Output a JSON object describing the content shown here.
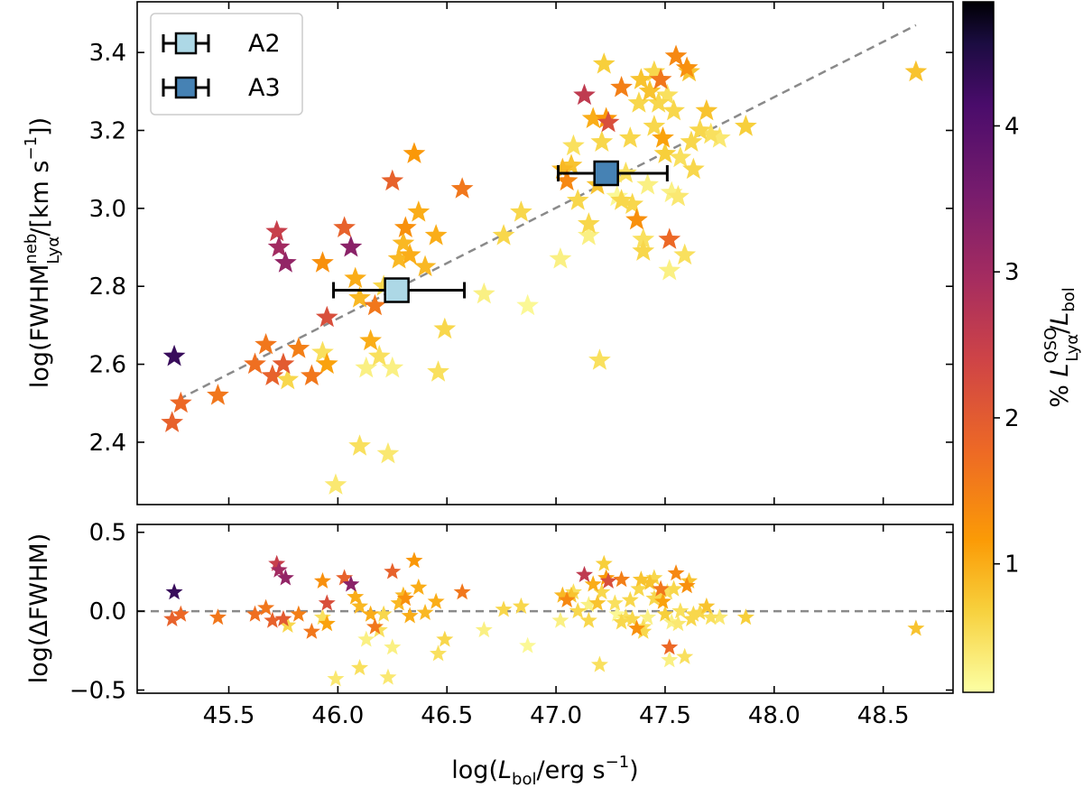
{
  "chart_data": [
    {
      "type": "scatter",
      "panel": "main",
      "xlabel": "log(L_bol / erg s^-1)",
      "ylabel": "log(FWHM_Lyα^neb / [km s^-1])",
      "ylabel_parts": {
        "pre": "log",
        "open": "(",
        "main": "FWHM",
        "sup": "neb",
        "sub": "Lyα",
        "unit": "/[km s",
        "unit_sup": "−1",
        "close": "])"
      },
      "xlim": [
        45.08,
        48.82
      ],
      "ylim": [
        2.24,
        3.53
      ],
      "xticks": [
        45.5,
        46.0,
        46.5,
        47.0,
        47.5,
        48.0,
        48.5
      ],
      "xtick_labels": [
        "45.5",
        "46.0",
        "46.5",
        "47.0",
        "47.5",
        "48.0",
        "48.5"
      ],
      "yticks": [
        2.4,
        2.6,
        2.8,
        3.0,
        3.2,
        3.4
      ],
      "ytick_labels": [
        "2.4",
        "2.6",
        "2.8",
        "3.0",
        "3.2",
        "3.4"
      ],
      "fit_line": {
        "x": [
          45.27,
          48.65
        ],
        "y": [
          2.51,
          3.47
        ],
        "style": "dashed",
        "color": "#8a8a8a"
      },
      "stars_color_var": "% L_Lyα^QSO / L_bol",
      "stars": [
        [
          45.25,
          2.62,
          4.3
        ],
        [
          45.24,
          2.45,
          1.9
        ],
        [
          45.28,
          2.5,
          1.8
        ],
        [
          45.45,
          2.52,
          1.6
        ],
        [
          45.62,
          2.6,
          1.7
        ],
        [
          45.67,
          2.65,
          1.6
        ],
        [
          45.7,
          2.57,
          1.9
        ],
        [
          45.72,
          2.94,
          2.5
        ],
        [
          45.73,
          2.9,
          3.0
        ],
        [
          45.76,
          2.86,
          3.2
        ],
        [
          45.75,
          2.6,
          2.0
        ],
        [
          45.77,
          2.56,
          0.6
        ],
        [
          45.82,
          2.64,
          1.5
        ],
        [
          45.88,
          2.57,
          1.6
        ],
        [
          45.93,
          2.86,
          1.3
        ],
        [
          45.93,
          2.63,
          0.5
        ],
        [
          45.95,
          2.6,
          1.1
        ],
        [
          45.95,
          2.72,
          2.2
        ],
        [
          46.03,
          2.95,
          1.9
        ],
        [
          46.06,
          2.9,
          3.3
        ],
        [
          46.08,
          2.82,
          1.0
        ],
        [
          46.1,
          2.77,
          0.9
        ],
        [
          46.1,
          2.39,
          0.5
        ],
        [
          46.13,
          2.59,
          0.3
        ],
        [
          46.15,
          2.66,
          1.0
        ],
        [
          46.17,
          2.75,
          1.6
        ],
        [
          46.19,
          2.62,
          0.5
        ],
        [
          46.21,
          2.8,
          0.6
        ],
        [
          46.23,
          2.37,
          0.4
        ],
        [
          46.25,
          2.59,
          0.3
        ],
        [
          46.25,
          3.07,
          1.9
        ],
        [
          46.28,
          2.87,
          0.9
        ],
        [
          46.3,
          2.91,
          0.9
        ],
        [
          46.31,
          2.95,
          1.3
        ],
        [
          46.33,
          2.88,
          1.0
        ],
        [
          46.35,
          3.14,
          1.2
        ],
        [
          46.37,
          2.99,
          1.0
        ],
        [
          46.4,
          2.85,
          0.9
        ],
        [
          46.45,
          2.93,
          1.0
        ],
        [
          46.46,
          2.58,
          0.5
        ],
        [
          46.49,
          2.69,
          0.6
        ],
        [
          46.57,
          3.05,
          1.6
        ],
        [
          46.67,
          2.78,
          0.3
        ],
        [
          46.76,
          2.93,
          0.6
        ],
        [
          46.84,
          2.99,
          0.6
        ],
        [
          46.87,
          2.75,
          0.2
        ],
        [
          45.99,
          2.29,
          0.4
        ],
        [
          47.02,
          2.87,
          0.3
        ],
        [
          47.03,
          3.1,
          0.9
        ],
        [
          47.05,
          3.07,
          1.4
        ],
        [
          47.07,
          3.11,
          0.8
        ],
        [
          47.08,
          3.16,
          0.5
        ],
        [
          47.1,
          3.02,
          0.6
        ],
        [
          47.13,
          3.29,
          2.6
        ],
        [
          47.15,
          2.96,
          0.6
        ],
        [
          47.15,
          2.93,
          0.3
        ],
        [
          47.17,
          3.23,
          1.0
        ],
        [
          47.19,
          3.06,
          0.8
        ],
        [
          47.2,
          2.61,
          0.5
        ],
        [
          47.21,
          3.17,
          0.6
        ],
        [
          47.22,
          3.37,
          0.7
        ],
        [
          47.23,
          3.23,
          1.2
        ],
        [
          47.24,
          3.22,
          2.2
        ],
        [
          47.27,
          3.09,
          0.5
        ],
        [
          47.28,
          3.03,
          0.2
        ],
        [
          47.3,
          3.02,
          0.6
        ],
        [
          47.3,
          3.31,
          1.5
        ],
        [
          47.32,
          3.09,
          0.5
        ],
        [
          47.34,
          3.18,
          0.6
        ],
        [
          47.35,
          3.01,
          0.6
        ],
        [
          47.37,
          2.97,
          1.3
        ],
        [
          47.38,
          3.27,
          0.6
        ],
        [
          47.39,
          3.33,
          0.8
        ],
        [
          47.4,
          2.92,
          0.5
        ],
        [
          47.4,
          2.89,
          0.6
        ],
        [
          47.42,
          3.06,
          0.3
        ],
        [
          47.43,
          3.3,
          0.8
        ],
        [
          47.45,
          3.35,
          0.6
        ],
        [
          47.45,
          3.21,
          0.6
        ],
        [
          47.47,
          3.27,
          0.6
        ],
        [
          47.48,
          3.33,
          1.6
        ],
        [
          47.49,
          3.18,
          1.1
        ],
        [
          47.5,
          3.14,
          0.7
        ],
        [
          47.51,
          3.29,
          0.5
        ],
        [
          47.52,
          2.92,
          1.8
        ],
        [
          47.52,
          2.84,
          0.3
        ],
        [
          47.53,
          3.04,
          0.3
        ],
        [
          47.54,
          3.25,
          0.6
        ],
        [
          47.55,
          3.39,
          1.4
        ],
        [
          47.56,
          3.03,
          0.4
        ],
        [
          47.57,
          3.13,
          0.5
        ],
        [
          47.59,
          2.88,
          0.5
        ],
        [
          47.6,
          3.36,
          1.3
        ],
        [
          47.61,
          3.35,
          0.8
        ],
        [
          47.62,
          3.17,
          0.6
        ],
        [
          47.63,
          3.1,
          0.6
        ],
        [
          47.66,
          3.2,
          0.6
        ],
        [
          47.69,
          3.25,
          0.8
        ],
        [
          47.71,
          3.19,
          0.5
        ],
        [
          47.75,
          3.18,
          0.4
        ],
        [
          47.87,
          3.21,
          0.7
        ],
        [
          48.65,
          3.35,
          0.8
        ]
      ],
      "binned_points": [
        {
          "name": "A2",
          "x": 46.27,
          "y": 2.79,
          "xerr": [
            45.98,
            46.58
          ],
          "color": "#add8e6"
        },
        {
          "name": "A3",
          "x": 47.23,
          "y": 3.09,
          "xerr": [
            47.01,
            47.51
          ],
          "color": "#4682b4"
        }
      ]
    },
    {
      "type": "scatter",
      "panel": "residual",
      "xlabel": "log(L_bol/erg s^-1)",
      "ylabel": "log(ΔFWHM)",
      "xlim": [
        45.08,
        48.82
      ],
      "ylim": [
        -0.52,
        0.55
      ],
      "yticks": [
        -0.5,
        0.0,
        0.5
      ],
      "ytick_labels": [
        "−0.5",
        "0.0",
        "0.5"
      ],
      "zero_line": {
        "y": 0.0,
        "style": "dashed",
        "color": "#8a8a8a"
      },
      "stars": [
        [
          45.25,
          0.12,
          4.3
        ],
        [
          45.24,
          -0.05,
          1.9
        ],
        [
          45.28,
          -0.02,
          1.8
        ],
        [
          45.45,
          -0.04,
          1.6
        ],
        [
          45.62,
          -0.02,
          1.7
        ],
        [
          45.67,
          0.02,
          1.6
        ],
        [
          45.7,
          -0.06,
          1.9
        ],
        [
          45.72,
          0.3,
          2.5
        ],
        [
          45.73,
          0.26,
          3.0
        ],
        [
          45.76,
          0.21,
          3.2
        ],
        [
          45.75,
          -0.05,
          2.0
        ],
        [
          45.77,
          -0.09,
          0.6
        ],
        [
          45.82,
          -0.02,
          1.5
        ],
        [
          45.88,
          -0.13,
          1.6
        ],
        [
          45.93,
          0.19,
          1.3
        ],
        [
          45.93,
          -0.04,
          0.5
        ],
        [
          45.95,
          -0.08,
          1.1
        ],
        [
          45.95,
          0.05,
          2.2
        ],
        [
          46.03,
          0.21,
          1.9
        ],
        [
          46.06,
          0.17,
          3.3
        ],
        [
          46.08,
          0.09,
          1.0
        ],
        [
          46.1,
          0.03,
          0.9
        ],
        [
          46.1,
          -0.36,
          0.5
        ],
        [
          46.13,
          -0.18,
          0.3
        ],
        [
          46.15,
          -0.02,
          1.0
        ],
        [
          46.17,
          -0.1,
          1.6
        ],
        [
          46.19,
          -0.12,
          0.5
        ],
        [
          46.21,
          -0.02,
          0.6
        ],
        [
          46.23,
          -0.42,
          0.4
        ],
        [
          46.25,
          -0.23,
          0.3
        ],
        [
          46.25,
          0.25,
          1.9
        ],
        [
          46.28,
          0.05,
          0.9
        ],
        [
          46.3,
          0.1,
          0.9
        ],
        [
          46.31,
          0.08,
          1.3
        ],
        [
          46.33,
          -0.03,
          1.0
        ],
        [
          46.35,
          0.32,
          1.2
        ],
        [
          46.37,
          0.15,
          1.0
        ],
        [
          46.4,
          -0.01,
          0.9
        ],
        [
          46.45,
          0.06,
          1.0
        ],
        [
          46.46,
          -0.27,
          0.5
        ],
        [
          46.49,
          -0.18,
          0.6
        ],
        [
          46.57,
          0.12,
          1.6
        ],
        [
          46.67,
          -0.12,
          0.3
        ],
        [
          46.76,
          0.01,
          0.6
        ],
        [
          46.84,
          0.03,
          0.6
        ],
        [
          46.87,
          -0.22,
          0.2
        ],
        [
          45.99,
          -0.43,
          0.4
        ],
        [
          47.02,
          -0.06,
          0.3
        ],
        [
          47.03,
          0.1,
          0.9
        ],
        [
          47.05,
          0.07,
          1.4
        ],
        [
          47.07,
          0.1,
          0.8
        ],
        [
          47.08,
          0.12,
          0.5
        ],
        [
          47.1,
          0.0,
          0.6
        ],
        [
          47.13,
          0.23,
          2.6
        ],
        [
          47.15,
          -0.06,
          0.6
        ],
        [
          47.15,
          0.04,
          0.3
        ],
        [
          47.17,
          0.17,
          1.0
        ],
        [
          47.19,
          0.05,
          0.8
        ],
        [
          47.2,
          -0.34,
          0.5
        ],
        [
          47.21,
          0.12,
          0.6
        ],
        [
          47.22,
          0.3,
          0.7
        ],
        [
          47.23,
          0.21,
          1.2
        ],
        [
          47.24,
          0.19,
          2.2
        ],
        [
          47.27,
          0.05,
          0.5
        ],
        [
          47.28,
          -0.02,
          0.2
        ],
        [
          47.3,
          -0.07,
          0.6
        ],
        [
          47.3,
          0.2,
          1.5
        ],
        [
          47.32,
          -0.04,
          0.5
        ],
        [
          47.34,
          0.07,
          0.6
        ],
        [
          47.35,
          -0.05,
          0.6
        ],
        [
          47.37,
          -0.11,
          1.3
        ],
        [
          47.38,
          0.14,
          0.6
        ],
        [
          47.39,
          0.2,
          0.8
        ],
        [
          47.4,
          -0.1,
          0.5
        ],
        [
          47.4,
          -0.13,
          0.6
        ],
        [
          47.42,
          -0.04,
          0.3
        ],
        [
          47.43,
          0.18,
          0.8
        ],
        [
          47.45,
          0.21,
          0.6
        ],
        [
          47.45,
          0.08,
          0.6
        ],
        [
          47.47,
          0.1,
          0.6
        ],
        [
          47.48,
          0.14,
          1.6
        ],
        [
          47.49,
          0.06,
          1.1
        ],
        [
          47.5,
          -0.02,
          0.7
        ],
        [
          47.51,
          0.12,
          0.5
        ],
        [
          47.52,
          -0.23,
          1.8
        ],
        [
          47.52,
          -0.31,
          0.3
        ],
        [
          47.53,
          -0.07,
          0.3
        ],
        [
          47.54,
          0.14,
          0.6
        ],
        [
          47.55,
          0.24,
          1.4
        ],
        [
          47.56,
          -0.08,
          0.4
        ],
        [
          47.57,
          0.0,
          0.5
        ],
        [
          47.59,
          -0.29,
          0.5
        ],
        [
          47.6,
          0.16,
          1.3
        ],
        [
          47.61,
          0.19,
          0.8
        ],
        [
          47.62,
          -0.05,
          0.6
        ],
        [
          47.63,
          -0.02,
          0.6
        ],
        [
          47.66,
          -0.01,
          0.6
        ],
        [
          47.69,
          0.03,
          0.8
        ],
        [
          47.71,
          -0.04,
          0.5
        ],
        [
          47.75,
          -0.04,
          0.4
        ],
        [
          47.87,
          -0.04,
          0.7
        ],
        [
          48.65,
          -0.11,
          0.8
        ]
      ]
    },
    {
      "type": "colorbar",
      "label": "% L_Lyα^QSO / L_bol",
      "label_parts": {
        "pct": "%",
        "L": "L",
        "sub": "Lyα",
        "sup": "QSO",
        "slash": "/",
        "L2": "L",
        "sub2": "bol"
      },
      "range": [
        0.12,
        4.85
      ],
      "ticks": [
        1,
        2,
        3,
        4
      ],
      "tick_labels": [
        "1",
        "2",
        "3",
        "4"
      ],
      "colormap": "inferno_r"
    }
  ],
  "legend": {
    "entries": [
      {
        "label": "A2",
        "color": "#add8e6"
      },
      {
        "label": "A3",
        "color": "#4682b4"
      }
    ]
  }
}
